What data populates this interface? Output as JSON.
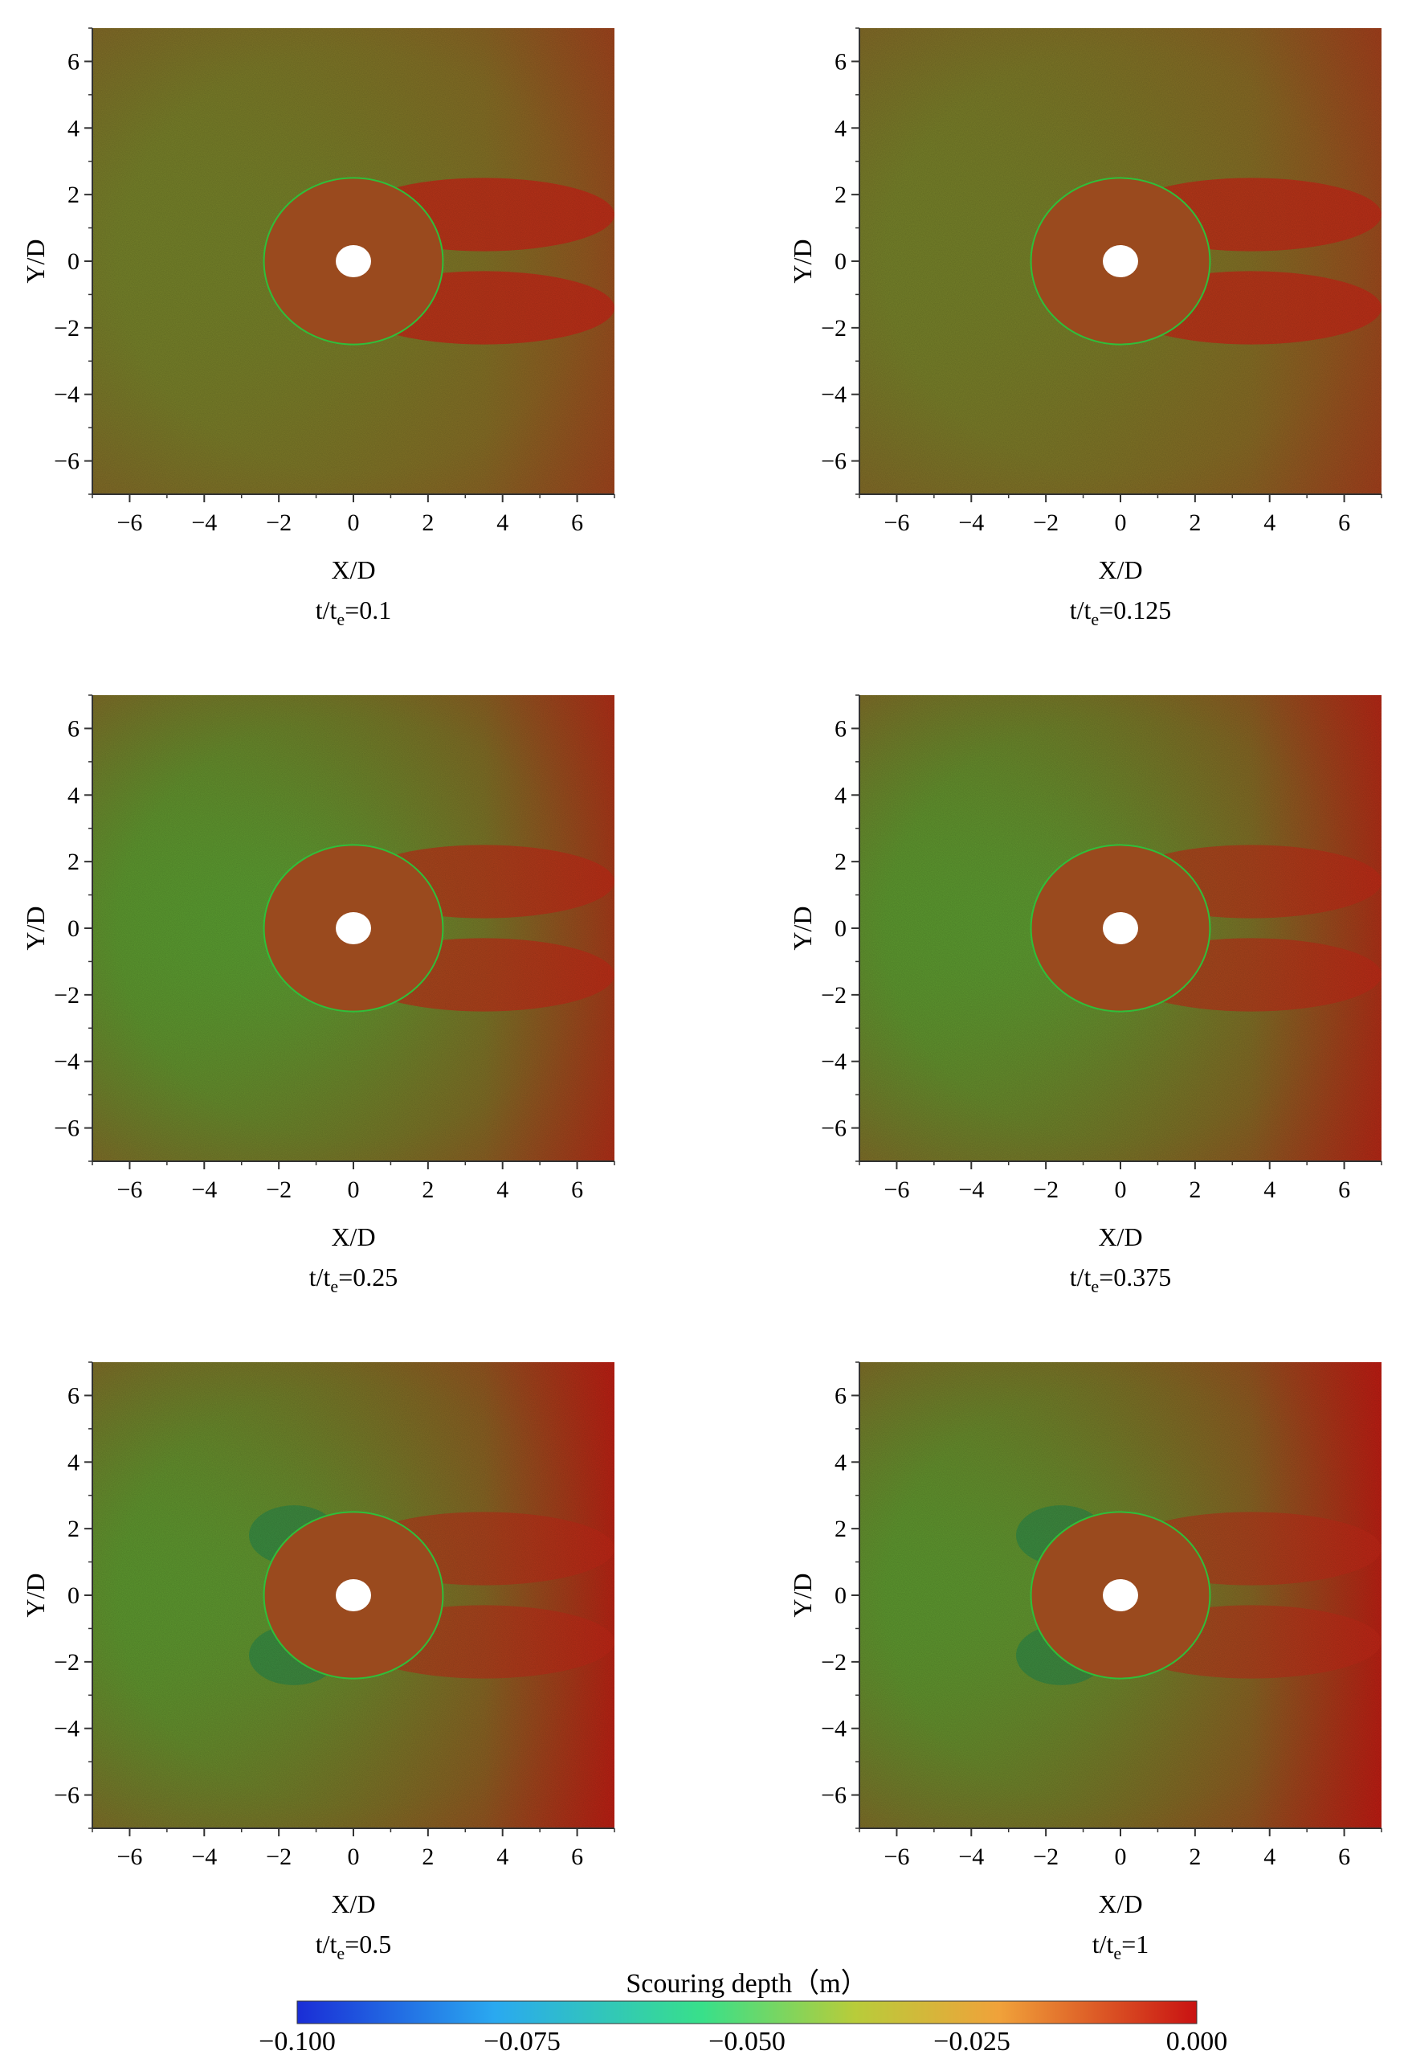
{
  "colorbar": {
    "title": "Scouring depth（m）",
    "ticks": [
      "−0.100",
      "−0.075",
      "−0.050",
      "−0.025",
      "0.000"
    ],
    "range": [
      -0.1,
      0.0
    ],
    "colors": [
      "#1a2dd6",
      "#2aa9f0",
      "#38e08a",
      "#b8cc3a",
      "#f0a23a",
      "#c91212"
    ]
  },
  "axes": {
    "xlabel": "X/D",
    "ylabel": "Y/D",
    "xticks": [
      "−6",
      "−4",
      "−2",
      "0",
      "2",
      "4",
      "6"
    ],
    "yticks": [
      "6",
      "4",
      "2",
      "0",
      "−2",
      "−4",
      "−6"
    ],
    "xlim": [
      -7,
      7
    ],
    "ylim": [
      -7,
      7
    ]
  },
  "panels": [
    {
      "time_label": "t/t",
      "sub": "e",
      "time_value": "=0.1",
      "green_level": 0.05
    },
    {
      "time_label": "t/t",
      "sub": "e",
      "time_value": "=0.125",
      "green_level": 0.15
    },
    {
      "time_label": "t/t",
      "sub": "e",
      "time_value": "=0.25",
      "green_level": 0.55
    },
    {
      "time_label": "t/t",
      "sub": "e",
      "time_value": "=0.375",
      "green_level": 0.7
    },
    {
      "time_label": "t/t",
      "sub": "e",
      "time_value": "=0.5",
      "green_level": 0.9
    },
    {
      "time_label": "t/t",
      "sub": "e",
      "time_value": "=1",
      "green_level": 0.95
    }
  ],
  "chart_data": [
    {
      "type": "heatmap",
      "title": "t/te=0.1",
      "xlabel": "X/D",
      "ylabel": "Y/D",
      "xlim": [
        -7,
        7
      ],
      "ylim": [
        -7,
        7
      ],
      "colorbar_label": "Scouring depth（m）",
      "zlim": [
        -0.1,
        0.0
      ]
    },
    {
      "type": "heatmap",
      "title": "t/te=0.125",
      "xlabel": "X/D",
      "ylabel": "Y/D",
      "xlim": [
        -7,
        7
      ],
      "ylim": [
        -7,
        7
      ],
      "colorbar_label": "Scouring depth（m）",
      "zlim": [
        -0.1,
        0.0
      ]
    },
    {
      "type": "heatmap",
      "title": "t/te=0.25",
      "xlabel": "X/D",
      "ylabel": "Y/D",
      "xlim": [
        -7,
        7
      ],
      "ylim": [
        -7,
        7
      ],
      "colorbar_label": "Scouring depth（m）",
      "zlim": [
        -0.1,
        0.0
      ]
    },
    {
      "type": "heatmap",
      "title": "t/te=0.375",
      "xlabel": "X/D",
      "ylabel": "Y/D",
      "xlim": [
        -7,
        7
      ],
      "ylim": [
        -7,
        7
      ],
      "colorbar_label": "Scouring depth（m）",
      "zlim": [
        -0.1,
        0.0
      ]
    },
    {
      "type": "heatmap",
      "title": "t/te=0.5",
      "xlabel": "X/D",
      "ylabel": "Y/D",
      "xlim": [
        -7,
        7
      ],
      "ylim": [
        -7,
        7
      ],
      "colorbar_label": "Scouring depth（m）",
      "zlim": [
        -0.1,
        0.0
      ]
    },
    {
      "type": "heatmap",
      "title": "t/te=1",
      "xlabel": "X/D",
      "ylabel": "Y/D",
      "xlim": [
        -7,
        7
      ],
      "ylim": [
        -7,
        7
      ],
      "colorbar_label": "Scouring depth（m）",
      "zlim": [
        -0.1,
        0.0
      ]
    }
  ]
}
